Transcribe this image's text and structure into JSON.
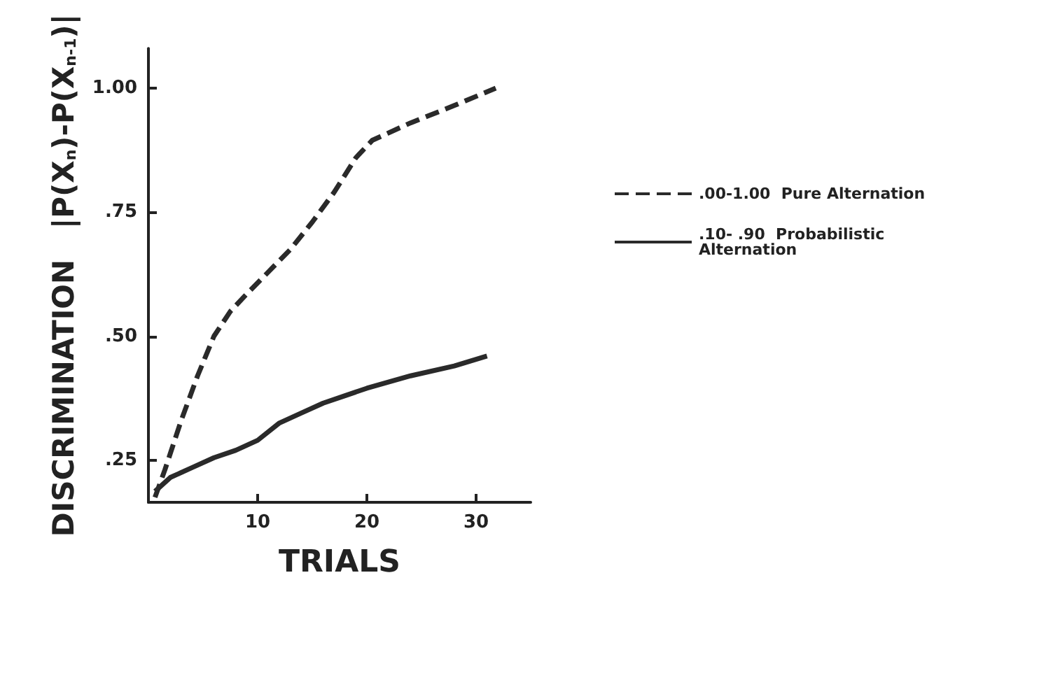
{
  "chart_data": {
    "type": "line",
    "xlabel": "TRIALS",
    "ylabel": "DISCRIMINATION   |P(X$_{n}$)-P(X$_{n-1}$)|",
    "xlim": [
      0,
      35
    ],
    "ylim": [
      0.165,
      1.08
    ],
    "xticks": [
      10,
      20,
      30
    ],
    "yticks": [
      {
        "value": 0.25,
        "label": ".25"
      },
      {
        "value": 0.5,
        "label": ".50"
      },
      {
        "value": 0.75,
        "label": ".75"
      },
      {
        "value": 1.0,
        "label": "1.00"
      }
    ],
    "grid": false,
    "legend": "right",
    "marker": "none",
    "series": [
      {
        "name": ".00-1.00  Pure Alternation",
        "color": "#2a2a2a",
        "line_style": "dashed",
        "x": [
          0.6,
          1.5,
          3,
          4.5,
          6,
          7.5,
          9,
          11,
          13,
          15,
          17,
          19,
          20.5,
          24,
          28,
          31.8
        ],
        "values": [
          0.175,
          0.23,
          0.33,
          0.42,
          0.5,
          0.55,
          0.585,
          0.63,
          0.675,
          0.73,
          0.79,
          0.86,
          0.895,
          0.93,
          0.965,
          1.0
        ]
      },
      {
        "name": ".10- .90  Probabilistic\nAlternation",
        "color": "#2a2a2a",
        "line_style": "solid",
        "x": [
          0.6,
          2,
          4,
          6,
          8,
          10,
          12,
          14,
          16,
          18,
          20,
          24,
          28,
          31
        ],
        "values": [
          0.187,
          0.215,
          0.235,
          0.255,
          0.27,
          0.29,
          0.325,
          0.345,
          0.365,
          0.38,
          0.395,
          0.42,
          0.44,
          0.46
        ]
      }
    ]
  }
}
